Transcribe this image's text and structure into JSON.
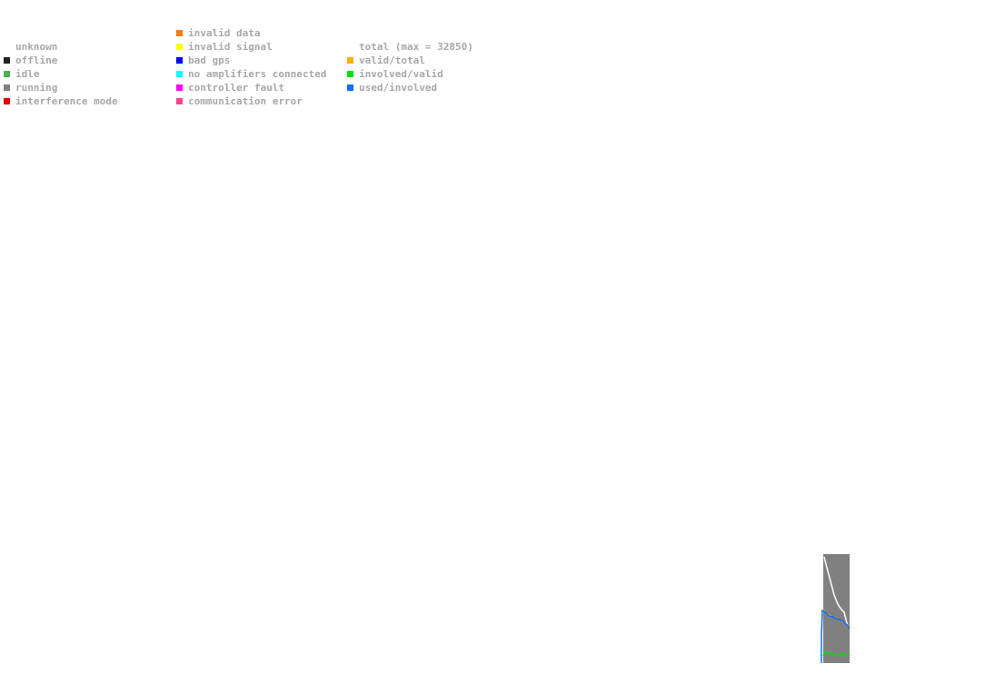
{
  "legend": {
    "columns": [
      {
        "items": [
          {
            "label": "unknown"
          },
          {
            "label": "offline",
            "color": "#222222"
          },
          {
            "label": "idle",
            "color": "#4caf50"
          },
          {
            "label": "running",
            "color": "#808080"
          },
          {
            "label": "interference mode",
            "color": "#e60000"
          }
        ]
      },
      {
        "items": [
          {
            "label": "invalid data",
            "color": "#ff7a00"
          },
          {
            "label": "invalid signal",
            "color": "#ffff00"
          },
          {
            "label": "bad gps",
            "color": "#0000ff"
          },
          {
            "label": "no amplifiers connected",
            "color": "#00ffff"
          },
          {
            "label": "controller fault",
            "color": "#ff00ff"
          },
          {
            "label": "communication error",
            "color": "#ff4090"
          }
        ]
      },
      {
        "items": [
          {
            "label": "total (max = 32850)"
          },
          {
            "label": "valid/total",
            "color": "#ffb000"
          },
          {
            "label": "involved/valid",
            "color": "#00e000"
          },
          {
            "label": "used/involved",
            "color": "#0070ff"
          }
        ]
      }
    ]
  }
}
